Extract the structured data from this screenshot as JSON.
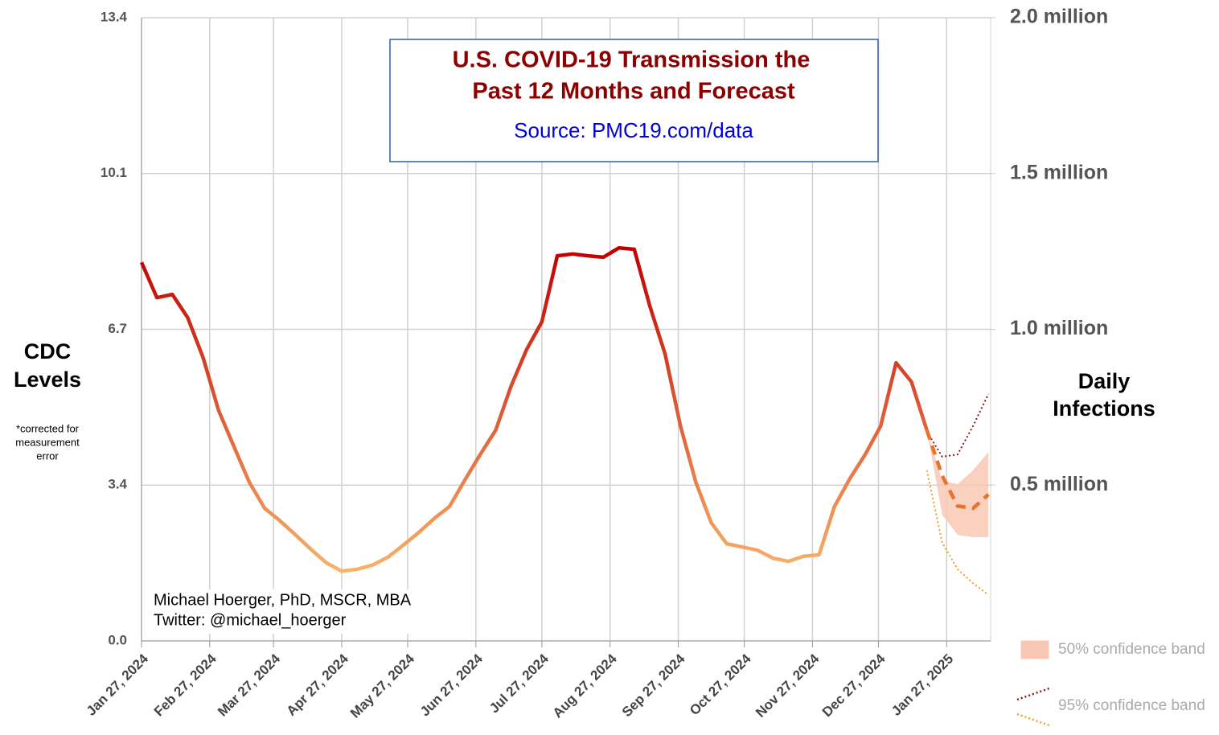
{
  "chart_data": {
    "type": "line",
    "title_lines": [
      "U.S. COVID-19 Transmission the",
      "Past 12 Months and Forecast"
    ],
    "subtitle": "Source: PMC19.com/data",
    "y_label_lines": [
      "CDC",
      "Levels"
    ],
    "y_note_lines": [
      "*corrected for",
      "measurement",
      "error"
    ],
    "y2_label_lines": [
      "Daily",
      "Infections"
    ],
    "annotation_lines": [
      "Michael Hoerger, PhD, MSCR, MBA",
      "Twitter: @michael_hoerger"
    ],
    "color_high": "#c00000",
    "color_low": "#f8b26a",
    "x": [
      "2024-01-27",
      "2024-02-03",
      "2024-02-10",
      "2024-02-17",
      "2024-02-24",
      "2024-03-02",
      "2024-03-09",
      "2024-03-16",
      "2024-03-23",
      "2024-03-30",
      "2024-04-06",
      "2024-04-13",
      "2024-04-20",
      "2024-04-27",
      "2024-05-04",
      "2024-05-11",
      "2024-05-18",
      "2024-05-25",
      "2024-06-01",
      "2024-06-08",
      "2024-06-15",
      "2024-06-22",
      "2024-06-29",
      "2024-07-06",
      "2024-07-13",
      "2024-07-20",
      "2024-07-27",
      "2024-08-03",
      "2024-08-10",
      "2024-08-17",
      "2024-08-24",
      "2024-08-31",
      "2024-09-07",
      "2024-09-14",
      "2024-09-21",
      "2024-09-28",
      "2024-10-05",
      "2024-10-12",
      "2024-10-19",
      "2024-10-26",
      "2024-11-02",
      "2024-11-09",
      "2024-11-16",
      "2024-11-23",
      "2024-11-30",
      "2024-12-07",
      "2024-12-14",
      "2024-12-21",
      "2024-12-28",
      "2025-01-04",
      "2025-01-11",
      "2025-01-18"
    ],
    "values": [
      8.14,
      7.38,
      7.45,
      6.95,
      6.09,
      4.96,
      4.18,
      3.41,
      2.85,
      2.58,
      2.28,
      1.97,
      1.68,
      1.5,
      1.54,
      1.63,
      1.8,
      2.06,
      2.33,
      2.63,
      2.89,
      3.46,
      4.01,
      4.53,
      5.48,
      6.26,
      6.86,
      8.28,
      8.32,
      8.28,
      8.25,
      8.45,
      8.42,
      7.21,
      6.17,
      4.62,
      3.41,
      2.54,
      2.09,
      2.02,
      1.95,
      1.78,
      1.71,
      1.82,
      1.85,
      2.89,
      3.49,
      4.01,
      4.62,
      5.98,
      5.57,
      4.53
    ],
    "forecast_x": [
      "2025-01-18",
      "2025-01-25",
      "2025-02-01",
      "2025-02-08",
      "2025-02-15"
    ],
    "forecast": {
      "color": "#e8732f",
      "values": [
        4.53,
        3.55,
        2.9,
        2.85,
        3.15
      ]
    },
    "band50": {
      "name": "50% confidence band",
      "color": "#f9c8b4",
      "lower": [
        4.53,
        2.71,
        2.28,
        2.23,
        2.23
      ],
      "upper": [
        4.53,
        3.44,
        3.37,
        3.67,
        4.06
      ]
    },
    "band95": {
      "name": "95% confidence band",
      "upper_color": "#8b1a1a",
      "lower_color": "#f0a020",
      "lower": [
        3.67,
        2.11,
        1.54,
        1.24,
        0.99
      ],
      "upper": [
        4.5,
        3.96,
        4.01,
        4.62,
        5.31
      ]
    },
    "xlim": [
      "2024-01-27",
      "2025-02-16"
    ],
    "xticks": [
      {
        "value": "2024-01-27",
        "label": "Jan 27, 2024"
      },
      {
        "value": "2024-02-27",
        "label": "Feb 27, 2024"
      },
      {
        "value": "2024-03-27",
        "label": "Mar 27, 2024"
      },
      {
        "value": "2024-04-27",
        "label": "Apr 27, 2024"
      },
      {
        "value": "2024-05-27",
        "label": "May 27, 2024"
      },
      {
        "value": "2024-06-27",
        "label": "Jun 27, 2024"
      },
      {
        "value": "2024-07-27",
        "label": "Jul 27, 2024"
      },
      {
        "value": "2024-08-27",
        "label": "Aug 27, 2024"
      },
      {
        "value": "2024-09-27",
        "label": "Sep 27, 2024"
      },
      {
        "value": "2024-10-27",
        "label": "Oct 27, 2024"
      },
      {
        "value": "2024-11-27",
        "label": "Nov 27, 2024"
      },
      {
        "value": "2024-12-27",
        "label": "Dec 27, 2024"
      },
      {
        "value": "2025-01-27",
        "label": "Jan 27, 2025"
      }
    ],
    "ylim": [
      0,
      13.4
    ],
    "yticks": [
      {
        "value": 0,
        "label": "0.0"
      },
      {
        "value": 3.35,
        "label": "3.4"
      },
      6.7,
      {
        "value": 10.05,
        "label": "10.1"
      },
      13.4
    ],
    "y2lim": [
      0,
      2000000
    ],
    "y2ticks": [
      {
        "value": 500000,
        "label": "0.5 million"
      },
      {
        "value": 1000000,
        "label": "1.0 million"
      },
      {
        "value": 1500000,
        "label": "1.5 million"
      },
      {
        "value": 2000000,
        "label": "2.0 million"
      }
    ],
    "grid": true
  }
}
